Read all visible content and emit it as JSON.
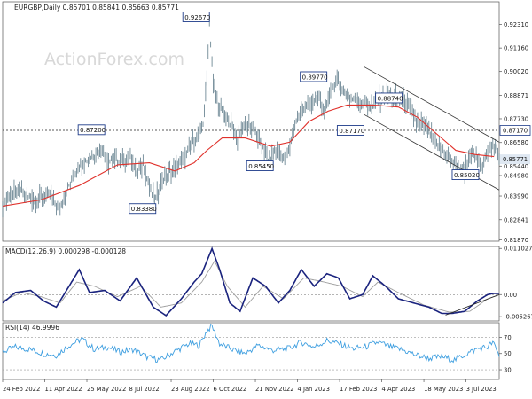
{
  "header": {
    "symbol_line": "EURGBP,Daily  0.85701 0.85841 0.85663 0.85771",
    "watermark": "ActionForex.com"
  },
  "colors": {
    "price": "#5d7a88",
    "ma": "#e0312b",
    "channel": "#333333",
    "macd": "#1a237e",
    "signal": "#9e9e9e",
    "rsi": "#3f9fe0",
    "label_border": "#1f3c8a",
    "current": "#dfe8f2"
  },
  "chart_data": [
    {
      "type": "line",
      "panel": "price",
      "ylim": [
        0.818,
        0.934
      ],
      "yticks": [
        "0.92310",
        "0.91160",
        "0.90020",
        "0.88871",
        "0.87730",
        "0.86580",
        "0.85440",
        "0.84980",
        "0.83990",
        "0.82841",
        "0.81870"
      ],
      "ytick_values": [
        0.9231,
        0.9116,
        0.9002,
        0.88871,
        0.8773,
        0.8658,
        0.8544,
        0.8498,
        0.8399,
        0.82841,
        0.8187
      ],
      "xlabels": [
        "24 Feb 2022",
        "11 Apr 2022",
        "25 May 2022",
        "8 Jul 2022",
        "23 Aug 2022",
        "6 Oct 2022",
        "21 Nov 2022",
        "4 Jan 2023",
        "17 Feb 2023",
        "4 Apr 2023",
        "18 May 2023",
        "3 Jul 2023"
      ],
      "x_label_positions": [
        0,
        33,
        66,
        99,
        132,
        165,
        198,
        231,
        264,
        297,
        330,
        363
      ],
      "total_bars": 390,
      "price_points": [
        [
          0,
          0.834
        ],
        [
          5,
          0.84
        ],
        [
          15,
          0.842
        ],
        [
          25,
          0.838
        ],
        [
          38,
          0.84
        ],
        [
          45,
          0.833
        ],
        [
          50,
          0.842
        ],
        [
          58,
          0.853
        ],
        [
          67,
          0.858
        ],
        [
          73,
          0.86
        ],
        [
          77,
          0.864
        ],
        [
          82,
          0.857
        ],
        [
          90,
          0.857
        ],
        [
          100,
          0.858
        ],
        [
          105,
          0.852
        ],
        [
          110,
          0.855
        ],
        [
          115,
          0.844
        ],
        [
          120,
          0.838
        ],
        [
          125,
          0.848
        ],
        [
          132,
          0.852
        ],
        [
          140,
          0.856
        ],
        [
          146,
          0.863
        ],
        [
          152,
          0.868
        ],
        [
          157,
          0.875
        ],
        [
          160,
          0.897
        ],
        [
          162,
          0.925
        ],
        [
          165,
          0.894
        ],
        [
          170,
          0.882
        ],
        [
          177,
          0.876
        ],
        [
          184,
          0.868
        ],
        [
          190,
          0.875
        ],
        [
          196,
          0.873
        ],
        [
          202,
          0.866
        ],
        [
          208,
          0.857
        ],
        [
          215,
          0.862
        ],
        [
          222,
          0.857
        ],
        [
          228,
          0.872
        ],
        [
          234,
          0.882
        ],
        [
          242,
          0.886
        ],
        [
          248,
          0.886
        ],
        [
          253,
          0.881
        ],
        [
          258,
          0.893
        ],
        [
          263,
          0.896
        ],
        [
          268,
          0.889
        ],
        [
          275,
          0.887
        ],
        [
          282,
          0.885
        ],
        [
          288,
          0.883
        ],
        [
          295,
          0.887
        ],
        [
          302,
          0.889
        ],
        [
          310,
          0.887
        ],
        [
          317,
          0.885
        ],
        [
          324,
          0.876
        ],
        [
          330,
          0.874
        ],
        [
          337,
          0.868
        ],
        [
          344,
          0.862
        ],
        [
          350,
          0.858
        ],
        [
          356,
          0.854
        ],
        [
          362,
          0.852
        ],
        [
          366,
          0.86
        ],
        [
          370,
          0.858
        ],
        [
          376,
          0.855
        ],
        [
          380,
          0.86
        ],
        [
          384,
          0.865
        ],
        [
          387,
          0.863
        ],
        [
          389,
          0.8577
        ]
      ],
      "ma_points": [
        [
          0,
          0.835
        ],
        [
          30,
          0.838
        ],
        [
          60,
          0.845
        ],
        [
          90,
          0.855
        ],
        [
          115,
          0.856
        ],
        [
          135,
          0.852
        ],
        [
          150,
          0.856
        ],
        [
          160,
          0.862
        ],
        [
          172,
          0.868
        ],
        [
          190,
          0.868
        ],
        [
          210,
          0.864
        ],
        [
          225,
          0.866
        ],
        [
          240,
          0.876
        ],
        [
          255,
          0.881
        ],
        [
          270,
          0.884
        ],
        [
          290,
          0.884
        ],
        [
          310,
          0.883
        ],
        [
          325,
          0.878
        ],
        [
          340,
          0.87
        ],
        [
          355,
          0.862
        ],
        [
          370,
          0.86
        ],
        [
          385,
          0.859
        ]
      ],
      "channel_upper": [
        [
          283,
          0.9025
        ],
        [
          389,
          0.866
        ]
      ],
      "channel_lower": [
        [
          283,
          0.8794
        ],
        [
          389,
          0.8428
        ]
      ],
      "dotted_level": 0.8717,
      "labels": [
        {
          "text": "0.92670",
          "bar": 162,
          "value": 0.9267,
          "pos": "left"
        },
        {
          "text": "0.87200",
          "bar": 80,
          "value": 0.872,
          "pos": "left"
        },
        {
          "text": "0.89770",
          "bar": 254,
          "value": 0.8977,
          "pos": "left"
        },
        {
          "text": "0.88740",
          "bar": 313,
          "value": 0.8874,
          "pos": "left"
        },
        {
          "text": "0.87170",
          "bar": 283,
          "value": 0.8717,
          "pos": "left"
        },
        {
          "text": "0.85450",
          "bar": 212,
          "value": 0.8545,
          "pos": "left"
        },
        {
          "text": "0.83380",
          "bar": 120,
          "value": 0.8338,
          "pos": "left"
        },
        {
          "text": "0.85020",
          "bar": 373,
          "value": 0.8502,
          "pos": "left"
        }
      ],
      "current_value": "0.85771"
    },
    {
      "type": "line",
      "panel": "macd",
      "title": "MACD(12,26,9) 0.000298 -0.000128",
      "ylim": [
        -0.0063,
        0.0115
      ],
      "yticks": [
        "0.011027",
        "0.00",
        "-0.005267"
      ],
      "ytick_values": [
        0.011027,
        0.0,
        -0.005267
      ],
      "macd_points": [
        [
          0,
          -0.002
        ],
        [
          10,
          0.0005
        ],
        [
          22,
          0.001
        ],
        [
          32,
          -0.0015
        ],
        [
          42,
          -0.003
        ],
        [
          52,
          0.002
        ],
        [
          60,
          0.006
        ],
        [
          68,
          0.0005
        ],
        [
          80,
          0.001
        ],
        [
          92,
          -0.0015
        ],
        [
          105,
          0.004
        ],
        [
          118,
          -0.003
        ],
        [
          128,
          -0.005
        ],
        [
          140,
          -0.001
        ],
        [
          150,
          0.003
        ],
        [
          156,
          0.005
        ],
        [
          164,
          0.011
        ],
        [
          170,
          0.006
        ],
        [
          178,
          -0.002
        ],
        [
          186,
          -0.004
        ],
        [
          196,
          0.004
        ],
        [
          206,
          0.002
        ],
        [
          216,
          -0.002
        ],
        [
          225,
          0.001
        ],
        [
          234,
          0.006
        ],
        [
          244,
          0.002
        ],
        [
          254,
          0.005
        ],
        [
          263,
          0.004
        ],
        [
          272,
          -0.001
        ],
        [
          282,
          0.0
        ],
        [
          290,
          0.0045
        ],
        [
          300,
          0.002
        ],
        [
          310,
          -0.001
        ],
        [
          322,
          -0.002
        ],
        [
          334,
          -0.003
        ],
        [
          344,
          -0.0045
        ],
        [
          352,
          -0.0045
        ],
        [
          362,
          -0.004
        ],
        [
          372,
          -0.0015
        ],
        [
          380,
          0.0
        ],
        [
          385,
          0.0003
        ],
        [
          389,
          0.0003
        ]
      ],
      "signal_points": [
        [
          0,
          -0.0015
        ],
        [
          15,
          0.0005
        ],
        [
          30,
          -0.0005
        ],
        [
          45,
          -0.002
        ],
        [
          58,
          0.003
        ],
        [
          72,
          0.002
        ],
        [
          90,
          -0.0005
        ],
        [
          108,
          0.002
        ],
        [
          124,
          -0.003
        ],
        [
          140,
          -0.002
        ],
        [
          156,
          0.003
        ],
        [
          166,
          0.008
        ],
        [
          176,
          0.002
        ],
        [
          190,
          -0.003
        ],
        [
          204,
          0.002
        ],
        [
          220,
          -0.001
        ],
        [
          236,
          0.004
        ],
        [
          252,
          0.003
        ],
        [
          266,
          0.002
        ],
        [
          282,
          -0.0005
        ],
        [
          294,
          0.003
        ],
        [
          310,
          0.0005
        ],
        [
          330,
          -0.0025
        ],
        [
          350,
          -0.0042
        ],
        [
          366,
          -0.004
        ],
        [
          380,
          -0.001
        ],
        [
          389,
          -0.0001
        ]
      ],
      "trendline": [
        [
          347,
          -0.0049
        ],
        [
          389,
          0.0
        ]
      ]
    },
    {
      "type": "line",
      "panel": "rsi",
      "title": "RSI(14) 46.9996",
      "ylim": [
        18,
        88
      ],
      "yticks": [
        "70",
        "50",
        "30"
      ],
      "ytick_values": [
        70,
        50,
        30
      ],
      "rsi_points": [
        [
          0,
          52
        ],
        [
          10,
          58
        ],
        [
          22,
          55
        ],
        [
          32,
          50
        ],
        [
          42,
          48
        ],
        [
          52,
          60
        ],
        [
          62,
          68
        ],
        [
          72,
          55
        ],
        [
          82,
          58
        ],
        [
          92,
          52
        ],
        [
          102,
          55
        ],
        [
          114,
          45
        ],
        [
          124,
          42
        ],
        [
          134,
          52
        ],
        [
          146,
          62
        ],
        [
          154,
          60
        ],
        [
          160,
          78
        ],
        [
          164,
          84
        ],
        [
          170,
          62
        ],
        [
          180,
          55
        ],
        [
          190,
          50
        ],
        [
          200,
          60
        ],
        [
          212,
          54
        ],
        [
          224,
          56
        ],
        [
          234,
          64
        ],
        [
          244,
          58
        ],
        [
          254,
          66
        ],
        [
          264,
          62
        ],
        [
          274,
          56
        ],
        [
          284,
          58
        ],
        [
          294,
          64
        ],
        [
          304,
          58
        ],
        [
          314,
          54
        ],
        [
          324,
          48
        ],
        [
          334,
          44
        ],
        [
          344,
          46
        ],
        [
          354,
          42
        ],
        [
          364,
          50
        ],
        [
          372,
          56
        ],
        [
          380,
          58
        ],
        [
          384,
          64
        ],
        [
          389,
          47
        ]
      ]
    }
  ]
}
